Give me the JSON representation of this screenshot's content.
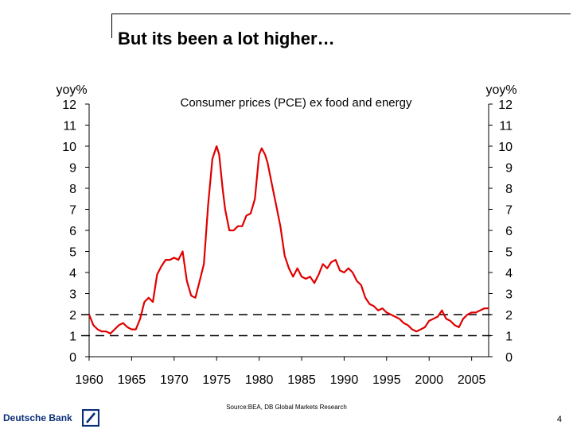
{
  "slide": {
    "title": "But its been a lot higher…",
    "source": "Source:BEA, DB Global Markets Research",
    "page_number": "4",
    "logo_text": "Deutsche Bank"
  },
  "colors": {
    "series": "#e00000",
    "text": "#000000",
    "brand": "#0b2e7a"
  },
  "chart_data": {
    "type": "line",
    "title": "Consumer prices (PCE) ex food and energy",
    "ylabel_left": "yoy%",
    "ylabel_right": "yoy%",
    "xlabel": "",
    "ylim": [
      0,
      12
    ],
    "xlim": [
      1960,
      2007
    ],
    "y_ticks": [
      "0",
      "1",
      "2",
      "3",
      "4",
      "5",
      "6",
      "7",
      "8",
      "9",
      "10",
      "11",
      "12"
    ],
    "x_ticks": [
      "1960",
      "1965",
      "1970",
      "1975",
      "1980",
      "1985",
      "1990",
      "1995",
      "2000",
      "2005"
    ],
    "reference_lines": [
      2,
      1
    ],
    "grid": false,
    "series": [
      {
        "name": "PCE ex food and energy, yoy%",
        "x": [
          1960.0,
          1960.5,
          1961.0,
          1961.5,
          1962.0,
          1962.5,
          1963.0,
          1963.5,
          1964.0,
          1964.5,
          1965.0,
          1965.5,
          1966.0,
          1966.5,
          1967.0,
          1967.5,
          1968.0,
          1968.5,
          1969.0,
          1969.5,
          1970.0,
          1970.5,
          1971.0,
          1971.5,
          1972.0,
          1972.5,
          1973.0,
          1973.5,
          1974.0,
          1974.5,
          1975.0,
          1975.3,
          1975.7,
          1976.0,
          1976.5,
          1977.0,
          1977.5,
          1978.0,
          1978.5,
          1979.0,
          1979.5,
          1980.0,
          1980.3,
          1980.7,
          1981.0,
          1981.5,
          1982.0,
          1982.5,
          1983.0,
          1983.5,
          1984.0,
          1984.5,
          1985.0,
          1985.5,
          1986.0,
          1986.5,
          1987.0,
          1987.5,
          1988.0,
          1988.5,
          1989.0,
          1989.5,
          1990.0,
          1990.5,
          1991.0,
          1991.5,
          1992.0,
          1992.5,
          1993.0,
          1993.5,
          1994.0,
          1994.5,
          1995.0,
          1995.5,
          1996.0,
          1996.5,
          1997.0,
          1997.5,
          1998.0,
          1998.5,
          1999.0,
          1999.5,
          2000.0,
          2000.5,
          2001.0,
          2001.5,
          2002.0,
          2002.5,
          2003.0,
          2003.5,
          2004.0,
          2004.5,
          2005.0,
          2005.5,
          2006.0,
          2006.5,
          2007.0
        ],
        "values": [
          2.0,
          1.5,
          1.3,
          1.2,
          1.2,
          1.1,
          1.3,
          1.5,
          1.6,
          1.4,
          1.3,
          1.3,
          1.8,
          2.6,
          2.8,
          2.6,
          3.9,
          4.3,
          4.6,
          4.6,
          4.7,
          4.6,
          5.0,
          3.6,
          2.9,
          2.8,
          3.6,
          4.4,
          7.2,
          9.4,
          10.0,
          9.6,
          8.0,
          7.0,
          6.0,
          6.0,
          6.2,
          6.2,
          6.7,
          6.8,
          7.5,
          9.6,
          9.9,
          9.6,
          9.2,
          8.2,
          7.2,
          6.2,
          4.8,
          4.2,
          3.8,
          4.2,
          3.8,
          3.7,
          3.8,
          3.5,
          3.9,
          4.4,
          4.2,
          4.5,
          4.6,
          4.1,
          4.0,
          4.2,
          4.0,
          3.6,
          3.4,
          2.8,
          2.5,
          2.4,
          2.2,
          2.3,
          2.1,
          2.0,
          1.9,
          1.8,
          1.6,
          1.5,
          1.3,
          1.2,
          1.3,
          1.4,
          1.7,
          1.8,
          1.9,
          2.2,
          1.8,
          1.7,
          1.5,
          1.4,
          1.8,
          2.0,
          2.1,
          2.1,
          2.2,
          2.3,
          2.3
        ]
      }
    ]
  }
}
